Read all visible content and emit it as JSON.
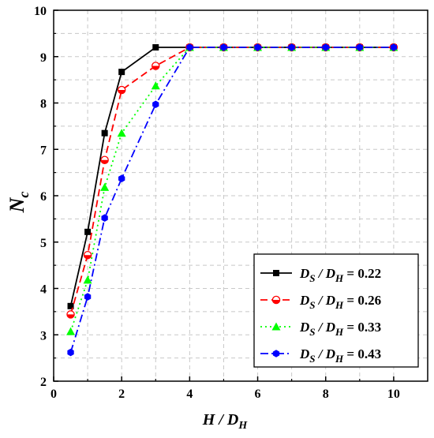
{
  "chart_data": {
    "type": "line",
    "xlabel": {
      "main": "H / D",
      "sub": "H"
    },
    "ylabel": {
      "main": "N",
      "sub": "c"
    },
    "xlim": [
      0,
      11
    ],
    "ylim": [
      2,
      10
    ],
    "xticks": [
      0,
      2,
      4,
      6,
      8,
      10
    ],
    "yticks": [
      2,
      3,
      4,
      5,
      6,
      7,
      8,
      9,
      10
    ],
    "grid": true,
    "legend_position": "bottom-right",
    "series": [
      {
        "name": {
          "main": "D",
          "sub1": "S",
          "mid": " / D",
          "sub2": "H",
          "rest": " = 0.22"
        },
        "color": "#000000",
        "marker": "square",
        "line": "solid",
        "x": [
          0.5,
          1,
          1.5,
          2,
          3,
          4,
          5,
          6,
          7,
          8,
          9,
          10
        ],
        "y": [
          3.62,
          5.22,
          7.35,
          8.67,
          9.2,
          9.2,
          9.2,
          9.2,
          9.2,
          9.2,
          9.2,
          9.2
        ]
      },
      {
        "name": {
          "main": "D",
          "sub1": "S",
          "mid": " / D",
          "sub2": "H",
          "rest": " = 0.26"
        },
        "color": "#ff0000",
        "marker": "circle-half",
        "line": "dashed",
        "x": [
          0.5,
          1,
          1.5,
          2,
          3,
          4,
          5,
          6,
          7,
          8,
          9,
          10
        ],
        "y": [
          3.44,
          4.72,
          6.77,
          8.28,
          8.8,
          9.2,
          9.2,
          9.2,
          9.2,
          9.2,
          9.2,
          9.2
        ]
      },
      {
        "name": {
          "main": "D",
          "sub1": "S",
          "mid": " / D",
          "sub2": "H",
          "rest": " = 0.33"
        },
        "color": "#00ff00",
        "marker": "triangle",
        "line": "dotted",
        "x": [
          0.5,
          1,
          1.5,
          2,
          3,
          4,
          5,
          6,
          7,
          8,
          9,
          10
        ],
        "y": [
          3.07,
          4.18,
          6.18,
          7.35,
          8.37,
          9.2,
          9.2,
          9.2,
          9.2,
          9.2,
          9.2,
          9.2
        ]
      },
      {
        "name": {
          "main": "D",
          "sub1": "S",
          "mid": " / D",
          "sub2": "H",
          "rest": " = 0.43"
        },
        "color": "#0000ff",
        "marker": "hexagon",
        "line": "dashdot",
        "x": [
          0.5,
          1,
          1.5,
          2,
          3,
          4,
          5,
          6,
          7,
          8,
          9,
          10
        ],
        "y": [
          2.62,
          3.82,
          5.52,
          6.37,
          7.97,
          9.2,
          9.2,
          9.2,
          9.2,
          9.2,
          9.2,
          9.2
        ]
      }
    ]
  }
}
